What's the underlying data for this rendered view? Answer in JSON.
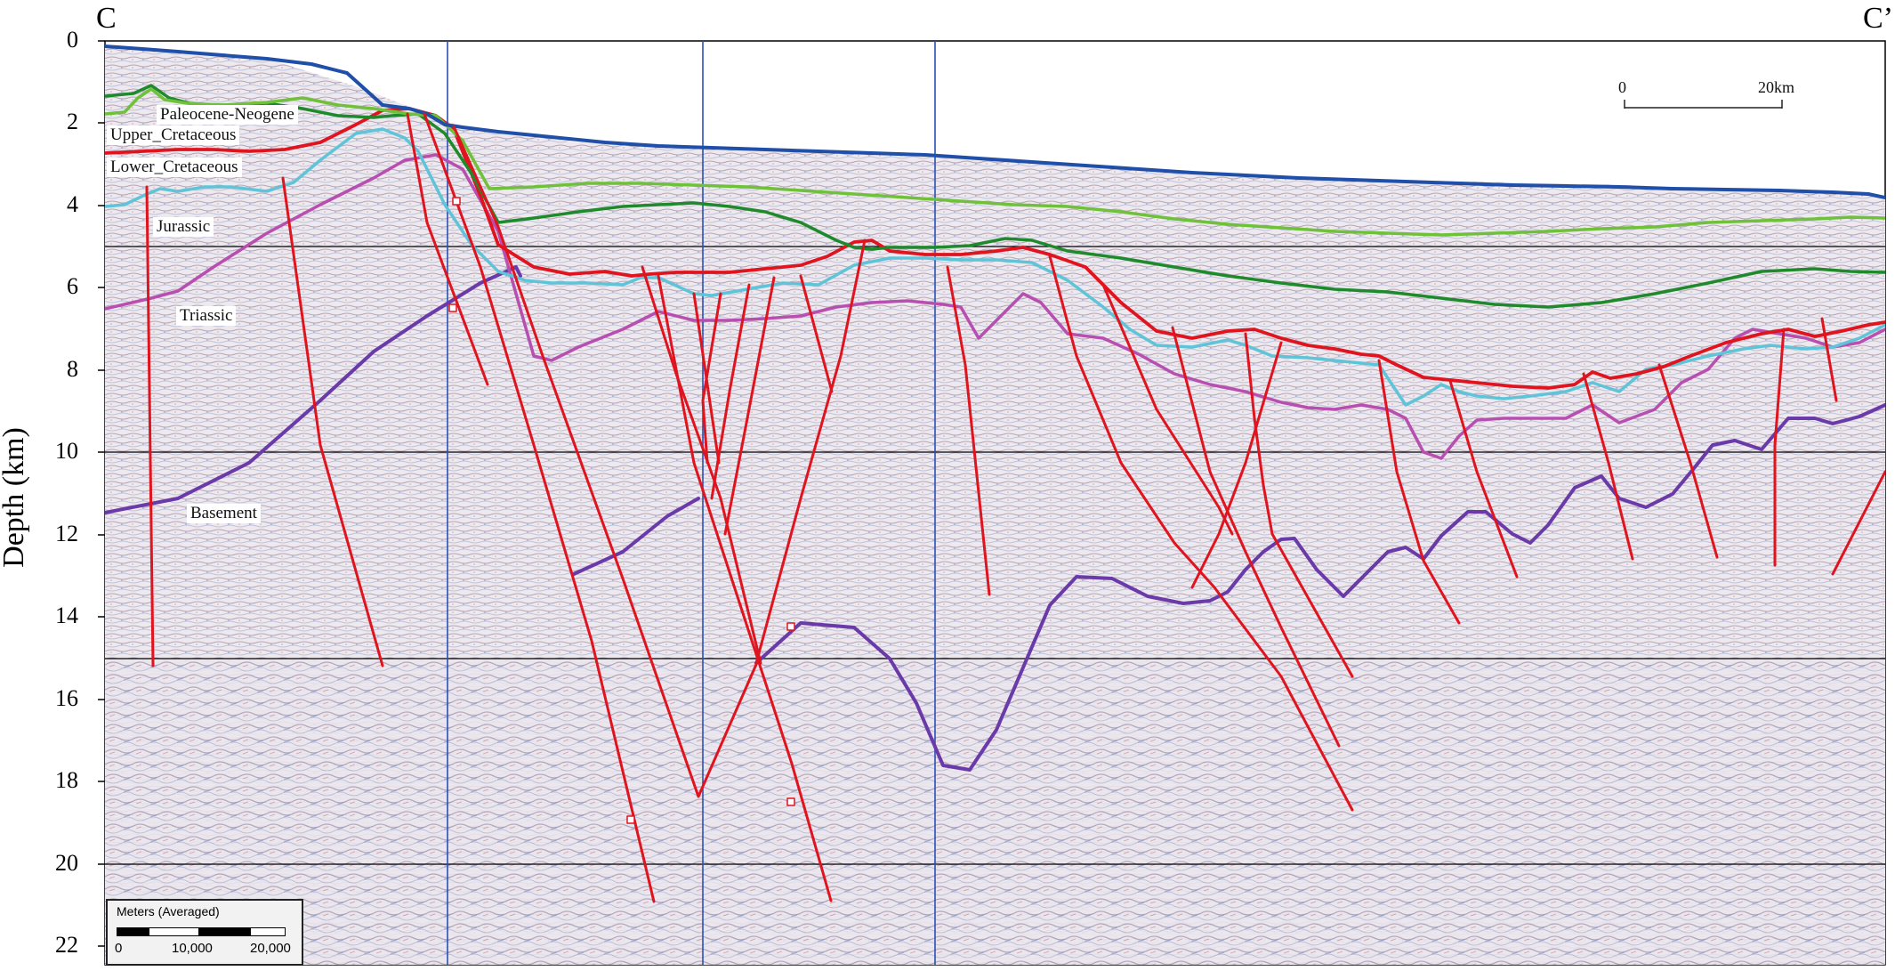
{
  "labels": {
    "left_corner": "C",
    "right_corner": "C’",
    "y_axis_title": "Depth (km)"
  },
  "y_axis": {
    "ticks": [
      "0",
      "2",
      "4",
      "6",
      "8",
      "10",
      "12",
      "14",
      "16",
      "18",
      "20",
      "22"
    ],
    "range_km": [
      0,
      22
    ]
  },
  "units": [
    {
      "name": "Paleocene-Neogene",
      "color": "#2ca02c"
    },
    {
      "name": "Upper_Cretaceous",
      "color": "#e0141e"
    },
    {
      "name": "Lower_Cretaceous",
      "color": "#5fc4d8"
    },
    {
      "name": "Jurassic",
      "color": "#b84fb0"
    },
    {
      "name": "Triassic",
      "color": "#b84fb0"
    },
    {
      "name": "Basement",
      "color": "#6a3aa8"
    }
  ],
  "scale_bar_top": {
    "start": "0",
    "end": "20km"
  },
  "scale_inset": {
    "title": "Meters (Averaged)",
    "ticks": [
      "0",
      "10,000",
      "20,000"
    ]
  },
  "colors": {
    "seafloor": "#1f4fa8",
    "neogene_top": "#6fc13a",
    "paleogene": "#1f8a2c",
    "cretaceous": "#e0141e",
    "lower_cretaceous": "#5fc4d8",
    "jurassic": "#b84fb0",
    "basement": "#6a3aa8",
    "faults": "#e0141e",
    "section_line": "#2b4fb5"
  }
}
